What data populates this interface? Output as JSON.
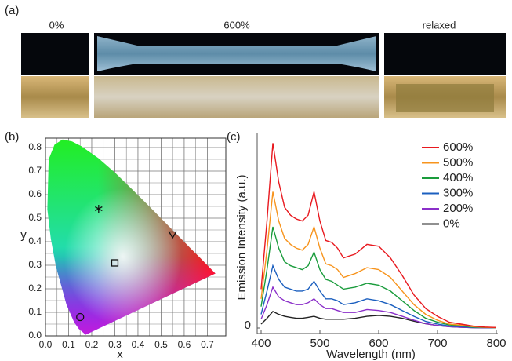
{
  "panel_a": {
    "label": "(a)",
    "captions": [
      "0%",
      "600%",
      "relaxed"
    ]
  },
  "chart_data": [
    {
      "type": "scatter",
      "panel_label": "(b)",
      "x_label": "x",
      "y_label": "y",
      "xlim": [
        0,
        0.78
      ],
      "ylim": [
        0,
        0.84
      ],
      "xticks": [
        {
          "value": 0,
          "label": "0.0"
        },
        0.1,
        0.2,
        0.3,
        0.4,
        0.5,
        0.6,
        0.7
      ],
      "yticks": [
        {
          "value": 0,
          "label": "0.0"
        },
        0.1,
        0.2,
        0.3,
        0.4,
        0.5,
        0.6,
        0.7,
        0.8
      ],
      "grid": true,
      "minor_grid": true,
      "points": {
        "x": [
          0.15,
          0.3,
          0.55,
          0.23
        ],
        "y": [
          0.08,
          0.31,
          0.43,
          0.54
        ],
        "markers": [
          "circle",
          "square",
          "triangle",
          "asterisk"
        ]
      }
    },
    {
      "type": "line",
      "panel_label": "(c)",
      "x_label": "Wavelength (nm)",
      "y_label": "Emission Intensity (a.u.)",
      "xlim": [
        400,
        800
      ],
      "ylim": [
        0,
        100
      ],
      "xticks": [
        400,
        500,
        600,
        700,
        800
      ],
      "yticks": [
        0
      ],
      "legend": "upper right",
      "x": [
        400,
        410,
        420,
        430,
        440,
        450,
        460,
        470,
        480,
        490,
        500,
        510,
        520,
        530,
        540,
        560,
        580,
        600,
        620,
        640,
        660,
        680,
        700,
        720,
        740,
        760,
        780,
        800
      ],
      "series": [
        {
          "name": "600%",
          "color": "#e8191f",
          "values": [
            20,
            55,
            95,
            75,
            62,
            58,
            56,
            55,
            58,
            70,
            55,
            45,
            44,
            41,
            36,
            38,
            43,
            42,
            36,
            27,
            17,
            10,
            6,
            3,
            2,
            1,
            0.5,
            0.3
          ]
        },
        {
          "name": "500%",
          "color": "#f7941d",
          "values": [
            15,
            40,
            70,
            55,
            46,
            43,
            41,
            40,
            43,
            52,
            41,
            33,
            32,
            30,
            26,
            28,
            31,
            30,
            26,
            19,
            12,
            7,
            4,
            2,
            1.5,
            0.7,
            0.4,
            0.2
          ]
        },
        {
          "name": "400%",
          "color": "#1a9c3c",
          "values": [
            11,
            30,
            52,
            41,
            34,
            32,
            31,
            30,
            32,
            39,
            30,
            25,
            24,
            22,
            20,
            21,
            23,
            22,
            19,
            14,
            9,
            5,
            3,
            1.6,
            1.1,
            0.5,
            0.3,
            0.2
          ]
        },
        {
          "name": "300%",
          "color": "#1b5fbf",
          "values": [
            7,
            19,
            32,
            25,
            21,
            20,
            19,
            19,
            20,
            24,
            19,
            15,
            15,
            14,
            12,
            13,
            15,
            14,
            12,
            9,
            6,
            3.4,
            2,
            1,
            0.7,
            0.3,
            0.2,
            0.1
          ]
        },
        {
          "name": "200%",
          "color": "#8b2fc9",
          "values": [
            4.5,
            12,
            21,
            16,
            14,
            13,
            12,
            12,
            13,
            15,
            12,
            10,
            10,
            9,
            8,
            8,
            9.5,
            9,
            8,
            6,
            4,
            2.2,
            1.3,
            0.7,
            0.4,
            0.2,
            0.1,
            0.1
          ]
        },
        {
          "name": "0%",
          "color": "#222222",
          "values": [
            2,
            5,
            8.5,
            7,
            6,
            5.5,
            5,
            5,
            5.5,
            6,
            5,
            4.5,
            4.5,
            4.5,
            4.5,
            5,
            6,
            6.5,
            6,
            5,
            3.5,
            2.2,
            1.3,
            0.7,
            0.4,
            0.2,
            0.1,
            0.1
          ]
        }
      ]
    }
  ]
}
